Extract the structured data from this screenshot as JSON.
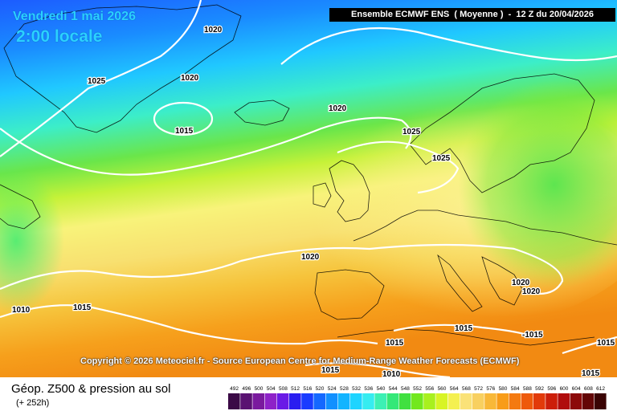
{
  "map": {
    "date_label": "Vendredi 1 mai 2026",
    "time_label": "2:00 locale",
    "header": "Ensemble ECMWF ENS  ( Moyenne )  -  12 Z du 20/04/2026",
    "copyright": "Copyright © 2026 Meteociel.fr - Source European Centre for Medium-Range Weather Forecasts (ECMWF)",
    "parameter_title": "Géop. Z500 & pression au sol",
    "lead_time": "(+ 252h)",
    "isobar_labels": [
      "1020",
      "1025",
      "1020",
      "1015",
      "1020",
      "1025",
      "1025",
      "1020",
      "1010",
      "1015",
      "1020",
      "1020",
      "1015",
      "-1015",
      "1015",
      "1015",
      "1010",
      "1015",
      "1015"
    ],
    "legend": {
      "values": [
        "492",
        "496",
        "500",
        "504",
        "508",
        "512",
        "516",
        "520",
        "524",
        "528",
        "532",
        "536",
        "540",
        "544",
        "548",
        "552",
        "556",
        "560",
        "564",
        "568",
        "572",
        "576",
        "580",
        "584",
        "588",
        "592",
        "596",
        "600",
        "604",
        "608",
        "612"
      ],
      "colors": [
        "#3b0a46",
        "#5a1272",
        "#7a1a9e",
        "#8e22c8",
        "#6a1ae6",
        "#2a1ef0",
        "#1a3cff",
        "#1468ff",
        "#1190ff",
        "#12b4ff",
        "#1ed4ff",
        "#36ecf0",
        "#3cf0b4",
        "#34e878",
        "#40e040",
        "#72e81e",
        "#a8f01e",
        "#d8f424",
        "#f4f050",
        "#fae278",
        "#f8d060",
        "#f8b838",
        "#f89c18",
        "#f47a10",
        "#ee5a0c",
        "#e23a0a",
        "#cc1e0a",
        "#b00c0c",
        "#8c0a0a",
        "#640606",
        "#3a0303"
      ]
    }
  }
}
